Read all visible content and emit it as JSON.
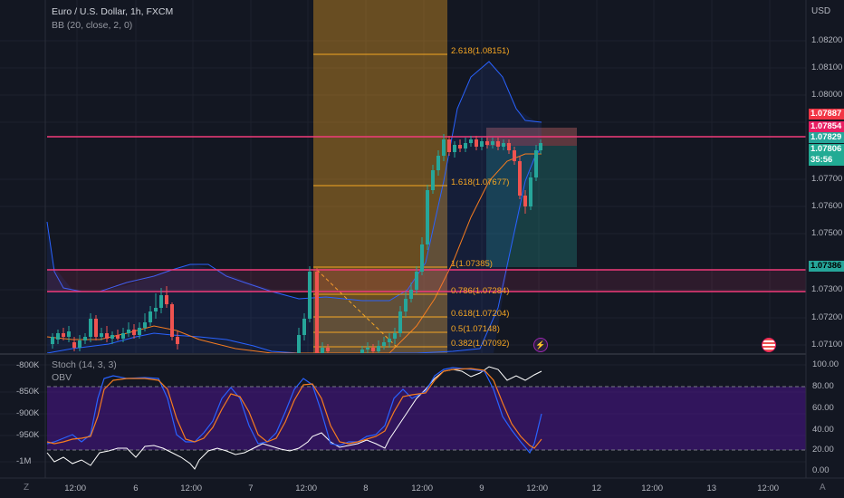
{
  "header": {
    "title": "Euro / U.S. Dollar, 1h, FXCM",
    "bb_label": "BB (20, close, 2, 0)",
    "stoch_label": "Stoch (14, 3, 3)",
    "obv_label": "OBV",
    "currency": "USD"
  },
  "price_axis": {
    "ticks": [
      "1.08200",
      "1.08100",
      "1.08000",
      "1.07700",
      "1.07600",
      "1.07500",
      "1.07300",
      "1.07200",
      "1.07100"
    ],
    "tags": [
      {
        "label": "1.07887",
        "bg": "#f23645",
        "fg": "#ffffff"
      },
      {
        "label": "1.07854",
        "bg": "#e91e63",
        "fg": "#ffffff"
      },
      {
        "label": "1.07829",
        "bg": "#26a69a",
        "fg": "#ffffff"
      },
      {
        "label": "1.07806",
        "bg": "#22ab94",
        "fg": "#ffffff"
      },
      {
        "label": "35:56",
        "bg": "#22ab94",
        "fg": "#ffffff"
      },
      {
        "label": "1.07386",
        "bg": "#26a69a",
        "fg": "#000000"
      }
    ]
  },
  "fib_levels": [
    {
      "ratio": "2.618",
      "price": "1.08151",
      "label": "2.618(1.08151)"
    },
    {
      "ratio": "1.618",
      "price": "1.07677",
      "label": "1.618(1.07677)"
    },
    {
      "ratio": "1",
      "price": "1.07385",
      "label": "1(1.07385)"
    },
    {
      "ratio": "0.786",
      "price": "1.07284",
      "label": "0.786(1.07284)"
    },
    {
      "ratio": "0.618",
      "price": "1.07204",
      "label": "0.618(1.07204)"
    },
    {
      "ratio": "0.5",
      "price": "1.07148",
      "label": "0.5(1.07148)"
    },
    {
      "ratio": "0.382",
      "price": "1.07092",
      "label": "0.382(1.07092)"
    }
  ],
  "obv_axis": [
    "-800K",
    "-850K",
    "-900K",
    "-950K",
    "-1M"
  ],
  "stoch_axis": [
    "100.00",
    "80.00",
    "60.00",
    "40.00",
    "20.00",
    "0.00"
  ],
  "time_axis": [
    "12:00",
    "6",
    "12:00",
    "7",
    "12:00",
    "8",
    "12:00",
    "9",
    "12:00",
    "12",
    "12:00",
    "13",
    "12:00"
  ],
  "corner_left": "Z",
  "corner_right": "A",
  "colors": {
    "background": "#131722",
    "up": "#26a69a",
    "down": "#ef5350",
    "bb": "#2962ff",
    "fib": "#f5a623",
    "stoch_k": "#2962ff",
    "stoch_d": "#f57c1f",
    "obv": "#ffffff",
    "resistance": "#f23b7a",
    "stoch_band": "#4a148c"
  },
  "icons": [
    "lightning-icon",
    "us-flag-icon"
  ]
}
